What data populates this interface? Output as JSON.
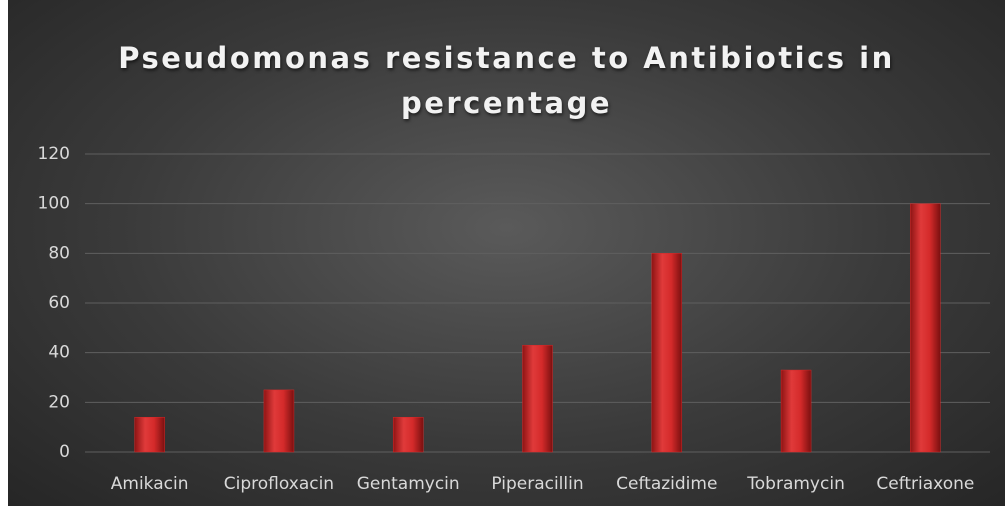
{
  "chart_data": {
    "type": "bar",
    "title": "Pseudomonas resistance to Antibiotics in percentage",
    "categories": [
      "Amikacin",
      "Ciprofloxacin",
      "Gentamycin",
      "Piperacillin",
      "Ceftazidime",
      "Tobramycin",
      "Ceftriaxone"
    ],
    "values": [
      14,
      25,
      14,
      43,
      80,
      33,
      100
    ],
    "color": "#d42a2a",
    "ylim": [
      0,
      120
    ],
    "yticks": [
      0,
      20,
      40,
      60,
      80,
      100,
      120
    ],
    "grid": true
  }
}
